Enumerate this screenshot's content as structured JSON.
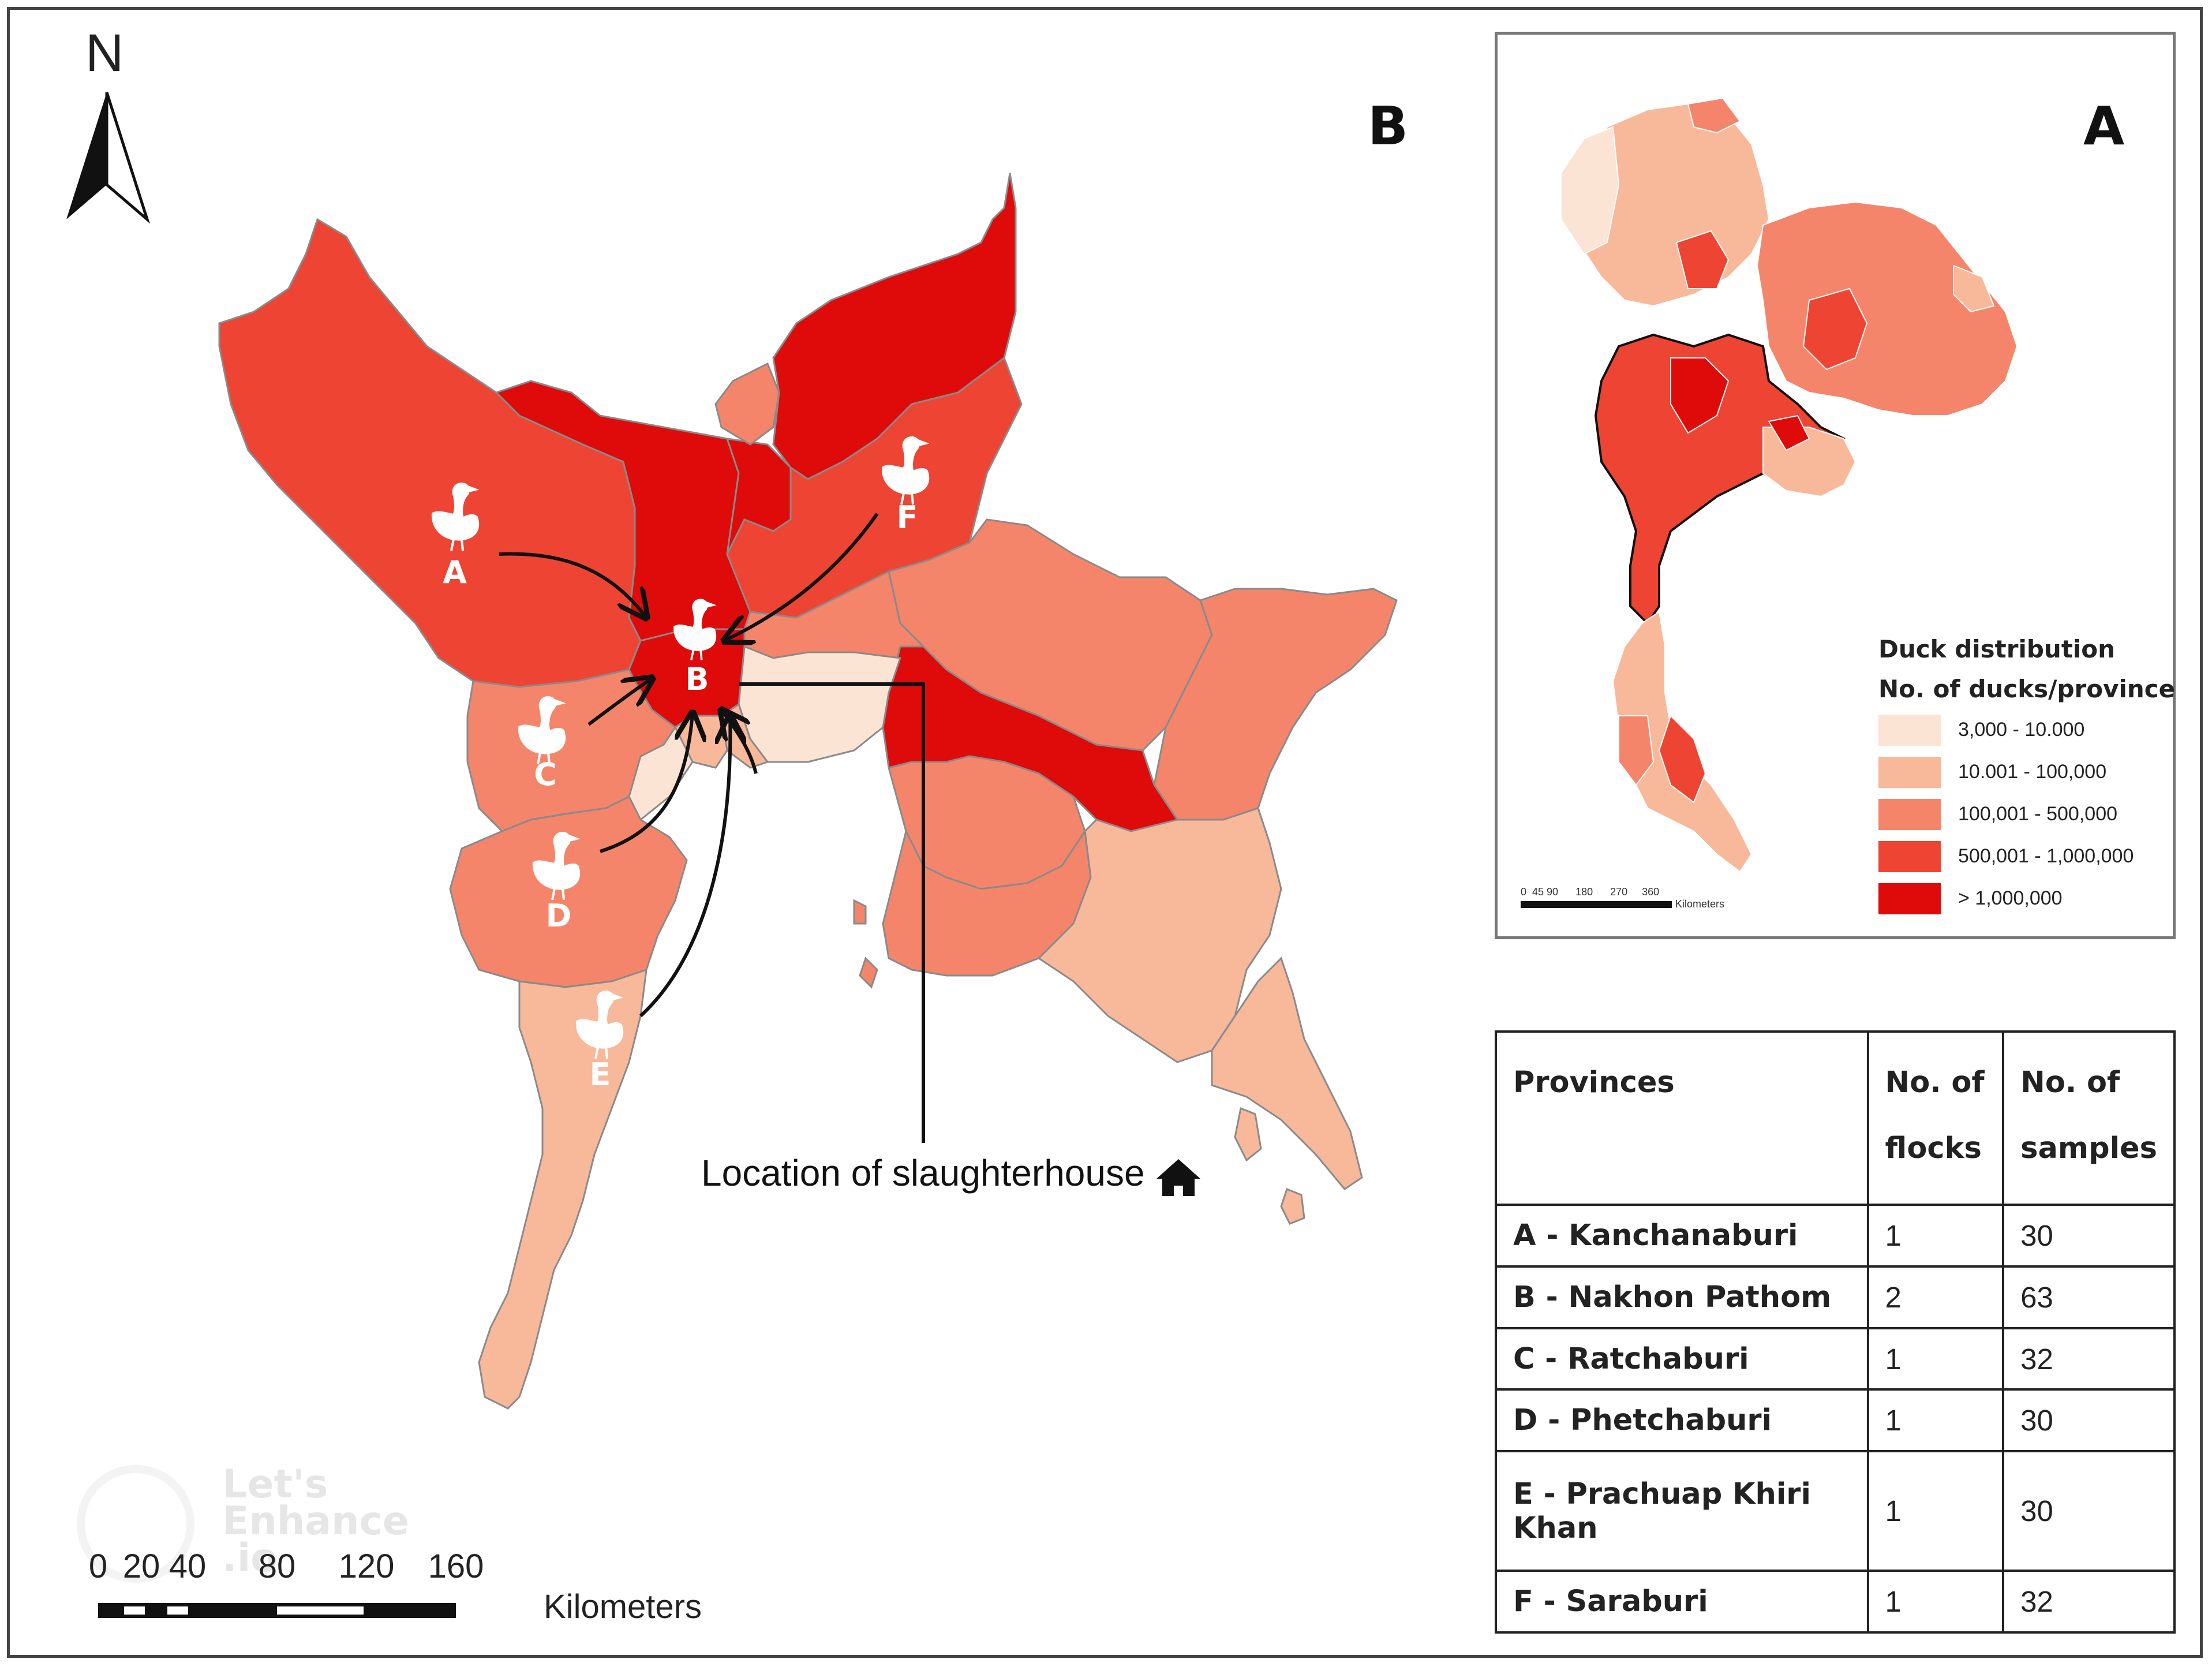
{
  "panels": {
    "main": "B",
    "inset": "A"
  },
  "north_arrow": {
    "label": "N"
  },
  "colors": {
    "class1": "#fbe4d4",
    "class2": "#f8b89a",
    "class3": "#f5856a",
    "class4": "#ee4433",
    "class5": "#df0a0a",
    "border": "#8a8a8a",
    "arrow": "#111111"
  },
  "legend": {
    "title": "Duck distribution",
    "subtitle": "No. of ducks/province",
    "classes": [
      {
        "label": "3,000 - 10.000",
        "color": "#fbe4d4"
      },
      {
        "label": "10.001 - 100,000",
        "color": "#f8b89a"
      },
      {
        "label": "100,001 - 500,000",
        "color": "#f5856a"
      },
      {
        "label": "500,001 - 1,000,000",
        "color": "#ee4433"
      },
      {
        "label": "> 1,000,000",
        "color": "#df0a0a"
      }
    ]
  },
  "inset_scale": {
    "ticks": "0  45 90      180      270     360",
    "unit": "Kilometers"
  },
  "flocks": [
    "A",
    "B",
    "C",
    "D",
    "E",
    "F"
  ],
  "slaughterhouse_label": "Location of slaughterhouse",
  "scale": {
    "ticks": [
      "0",
      "20",
      "40",
      "80",
      "120",
      "160"
    ],
    "unit": "Kilometers"
  },
  "table": {
    "headers": [
      "Provinces",
      "No. of flocks",
      "No. of samples"
    ],
    "rows": [
      {
        "province": "A - Kanchanaburi",
        "flocks": "1",
        "samples": "30"
      },
      {
        "province": "B - Nakhon Pathom",
        "flocks": "2",
        "samples": "63"
      },
      {
        "province": "C - Ratchaburi",
        "flocks": "1",
        "samples": "32"
      },
      {
        "province": "D - Phetchaburi",
        "flocks": "1",
        "samples": "30"
      },
      {
        "province": "E - Prachuap Khiri Khan",
        "flocks": "1",
        "samples": "30"
      },
      {
        "province": "F - Saraburi",
        "flocks": "1",
        "samples": "32"
      }
    ]
  },
  "watermark": "Let's Enhance .io"
}
